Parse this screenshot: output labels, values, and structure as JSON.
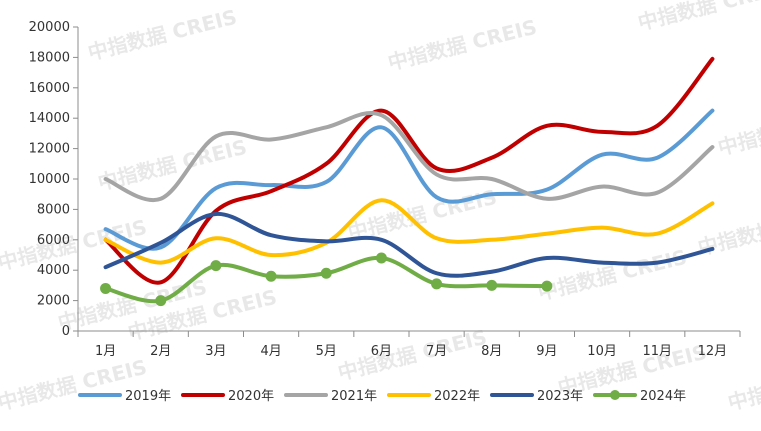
{
  "watermark": "中指数据 CREIS",
  "chart_data": {
    "type": "line",
    "title": "",
    "xlabel": "",
    "ylabel": "",
    "categories": [
      "1月",
      "2月",
      "3月",
      "4月",
      "5月",
      "6月",
      "7月",
      "8月",
      "9月",
      "10月",
      "11月",
      "12月"
    ],
    "ylim": [
      0,
      20000
    ],
    "yticks": [
      0,
      2000,
      4000,
      6000,
      8000,
      10000,
      12000,
      14000,
      16000,
      18000,
      20000
    ],
    "smooth": true,
    "grid": false,
    "legend_position": "bottom",
    "series": [
      {
        "name": "2019年",
        "color": "#5B9BD5",
        "markers": false,
        "values": [
          6700,
          5500,
          9400,
          9600,
          9800,
          13400,
          8800,
          9000,
          9300,
          11600,
          11400,
          14500
        ]
      },
      {
        "name": "2020年",
        "color": "#C00000",
        "markers": false,
        "values": [
          6000,
          3200,
          7900,
          9200,
          11000,
          14500,
          10700,
          11400,
          13500,
          13100,
          13500,
          17900
        ]
      },
      {
        "name": "2021年",
        "color": "#A5A5A5",
        "markers": false,
        "values": [
          10000,
          8700,
          12800,
          12600,
          13400,
          14200,
          10300,
          10000,
          8700,
          9500,
          9100,
          12100
        ]
      },
      {
        "name": "2022年",
        "color": "#FFC000",
        "markers": false,
        "values": [
          6000,
          4500,
          6100,
          5000,
          5800,
          8600,
          6100,
          6000,
          6400,
          6800,
          6400,
          8400
        ]
      },
      {
        "name": "2023年",
        "color": "#2F5597",
        "markers": false,
        "values": [
          4200,
          5800,
          7700,
          6300,
          5900,
          6000,
          3800,
          3900,
          4800,
          4500,
          4500,
          5400
        ]
      },
      {
        "name": "2024年",
        "color": "#70AD47",
        "markers": true,
        "values": [
          2800,
          2000,
          4300,
          3600,
          3800,
          4800,
          3100,
          3000,
          2950,
          null,
          null,
          null
        ]
      }
    ]
  }
}
